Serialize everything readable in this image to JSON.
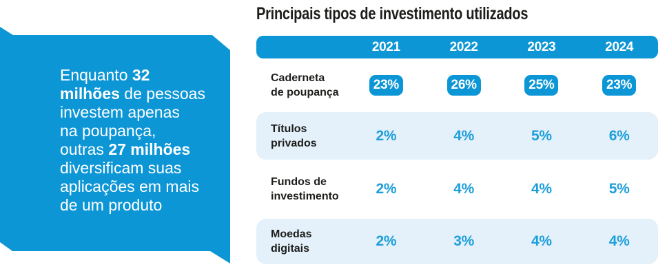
{
  "colors": {
    "accent_blue": "#0d96d6",
    "light_row_blue": "#e4f1fa",
    "value_text_blue": "#1e9fdb",
    "ink": "#1d1d1b",
    "callout_text": "#ffffff"
  },
  "callout": {
    "full_text": "Enquanto 32 milhões de pessoas investem apenas na poupança, outras 27 milhões diversificam suas aplicações em mais de um produto",
    "lines": [
      [
        {
          "t": "Enquanto ",
          "b": false
        },
        {
          "t": "32",
          "b": true
        }
      ],
      [
        {
          "t": "milhões",
          "b": true
        },
        {
          "t": " de pessoas",
          "b": false
        }
      ],
      [
        {
          "t": "investem apenas",
          "b": false
        }
      ],
      [
        {
          "t": "na poupança,",
          "b": false
        }
      ],
      [
        {
          "t": "outras ",
          "b": false
        },
        {
          "t": "27 milhões",
          "b": true
        }
      ],
      [
        {
          "t": "diversificam suas",
          "b": false
        }
      ],
      [
        {
          "t": "aplicações em mais",
          "b": false
        }
      ],
      [
        {
          "t": "de um produto",
          "b": false
        }
      ]
    ]
  },
  "table": {
    "title": "Principais tipos de investimento utilizados",
    "years": [
      "2021",
      "2022",
      "2023",
      "2024"
    ],
    "rows": [
      {
        "label": "Caderneta\nde poupança",
        "values": [
          "23%",
          "26%",
          "25%",
          "23%"
        ],
        "highlight": true,
        "shaded": false
      },
      {
        "label": "Títulos\nprivados",
        "values": [
          "2%",
          "4%",
          "5%",
          "6%"
        ],
        "highlight": false,
        "shaded": true
      },
      {
        "label": "Fundos de\ninvestimento",
        "values": [
          "2%",
          "4%",
          "4%",
          "5%"
        ],
        "highlight": false,
        "shaded": false
      },
      {
        "label": "Moedas\ndigitais",
        "values": [
          "2%",
          "3%",
          "4%",
          "4%"
        ],
        "highlight": false,
        "shaded": true
      }
    ]
  },
  "chart_data": {
    "type": "table",
    "title": "Principais tipos de investimento utilizados",
    "categories": [
      "2021",
      "2022",
      "2023",
      "2024"
    ],
    "series": [
      {
        "name": "Caderneta de poupança",
        "values": [
          23,
          26,
          25,
          23
        ]
      },
      {
        "name": "Títulos privados",
        "values": [
          2,
          4,
          5,
          6
        ]
      },
      {
        "name": "Fundos de investimento",
        "values": [
          2,
          4,
          4,
          5
        ]
      },
      {
        "name": "Moedas digitais",
        "values": [
          2,
          3,
          4,
          4
        ]
      }
    ],
    "unit": "%",
    "annotation": "Enquanto 32 milhões de pessoas investem apenas na poupança, outras 27 milhões diversificam suas aplicações em mais de um produto",
    "layout_hints": {
      "highlighted_row": "Caderneta de poupança",
      "alternating_row_shading": true,
      "header_position": "top"
    }
  }
}
